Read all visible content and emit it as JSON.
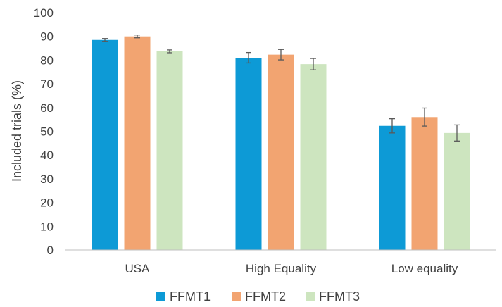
{
  "chart_data": {
    "type": "bar",
    "title": "",
    "xlabel": "",
    "ylabel": "Included trials (%)",
    "ylim": [
      0,
      100
    ],
    "yticks": [
      0,
      10,
      20,
      30,
      40,
      50,
      60,
      70,
      80,
      90,
      100
    ],
    "grid": false,
    "legend_position": "bottom",
    "categories": [
      "USA",
      "High Equality",
      "Low equality"
    ],
    "series": [
      {
        "name": "FFMT1",
        "color": "#0d9ad6",
        "values": [
          88.5,
          81.0,
          52.3
        ],
        "errors": [
          0.6,
          2.2,
          3.0
        ]
      },
      {
        "name": "FFMT2",
        "color": "#f2a471",
        "values": [
          90.0,
          82.3,
          56.0
        ],
        "errors": [
          0.6,
          2.2,
          3.8
        ]
      },
      {
        "name": "FFMT3",
        "color": "#cde5bf",
        "values": [
          83.7,
          78.3,
          49.3
        ],
        "errors": [
          0.6,
          2.4,
          3.4
        ]
      }
    ]
  }
}
